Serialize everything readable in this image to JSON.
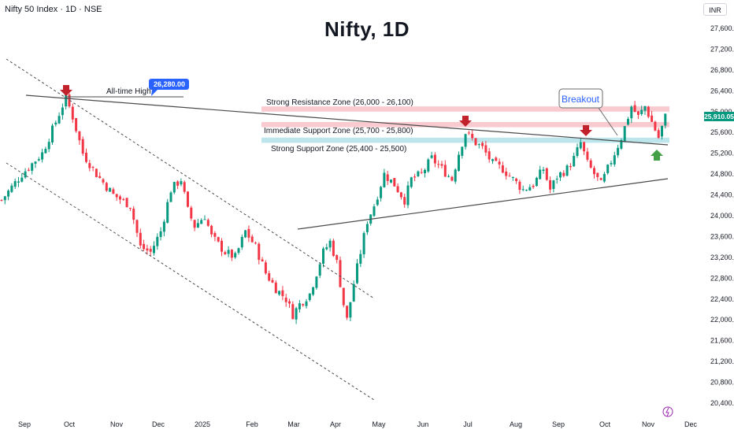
{
  "header": {
    "symbol_line": "Nifty 50 Index · 1D · NSE",
    "currency": "INR",
    "title": "Nifty, 1D"
  },
  "colors": {
    "up": "#089981",
    "down": "#f23645",
    "resistance_zone": "#f7b9c0",
    "support_zone": "#a7dde6",
    "trendline": "#4a4a4a",
    "callout_blue": "#2962ff",
    "arrow_red": "#c2222b",
    "arrow_green": "#43a047",
    "price_label": "#089981"
  },
  "chart_data": {
    "type": "candlestick",
    "title": "Nifty, 1D",
    "ylim": [
      20400,
      27800
    ],
    "yticks": [
      "27,600.00",
      "27,200.00",
      "26,800.00",
      "26,400.00",
      "26,000.00",
      "25,600.00",
      "25,200.00",
      "24,800.00",
      "24,400.00",
      "24,000.00",
      "23,600.00",
      "23,200.00",
      "22,800.00",
      "22,400.00",
      "22,000.00",
      "21,600.00",
      "21,200.00",
      "20,800.00",
      "20,400.00"
    ],
    "xticks": [
      "Sep",
      "Oct",
      "Nov",
      "Dec",
      "2025",
      "Feb",
      "Mar",
      "Apr",
      "May",
      "Jun",
      "Jul",
      "Aug",
      "Sep",
      "Oct",
      "Nov",
      "Dec"
    ],
    "last_price": "25,910.05",
    "close_path": [
      [
        0,
        24300
      ],
      [
        6,
        24800
      ],
      [
        12,
        25200
      ],
      [
        16,
        25800
      ],
      [
        19,
        26280
      ],
      [
        21,
        25900
      ],
      [
        24,
        25200
      ],
      [
        28,
        24800
      ],
      [
        33,
        24400
      ],
      [
        38,
        24200
      ],
      [
        41,
        23400
      ],
      [
        44,
        23300
      ],
      [
        47,
        23700
      ],
      [
        50,
        24500
      ],
      [
        53,
        24700
      ],
      [
        55,
        24100
      ],
      [
        57,
        23800
      ],
      [
        60,
        24000
      ],
      [
        62,
        23600
      ],
      [
        66,
        23300
      ],
      [
        69,
        23200
      ],
      [
        72,
        23700
      ],
      [
        75,
        23400
      ],
      [
        78,
        22900
      ],
      [
        81,
        22600
      ],
      [
        84,
        22400
      ],
      [
        86,
        22100
      ],
      [
        88,
        22300
      ],
      [
        91,
        22500
      ],
      [
        93,
        22900
      ],
      [
        95,
        23300
      ],
      [
        97,
        23500
      ],
      [
        99,
        23100
      ],
      [
        101,
        22300
      ],
      [
        102,
        22000
      ],
      [
        104,
        22700
      ],
      [
        106,
        23300
      ],
      [
        108,
        23900
      ],
      [
        110,
        24200
      ],
      [
        113,
        24800
      ],
      [
        116,
        24600
      ],
      [
        119,
        24300
      ],
      [
        121,
        24700
      ],
      [
        124,
        24800
      ],
      [
        127,
        25100
      ],
      [
        130,
        24900
      ],
      [
        133,
        24700
      ],
      [
        135,
        25200
      ],
      [
        137,
        25600
      ],
      [
        140,
        25400
      ],
      [
        142,
        25300
      ],
      [
        145,
        25000
      ],
      [
        148,
        24900
      ],
      [
        151,
        24700
      ],
      [
        154,
        24500
      ],
      [
        157,
        24600
      ],
      [
        160,
        24900
      ],
      [
        162,
        24500
      ],
      [
        164,
        24750
      ],
      [
        167,
        24900
      ],
      [
        169,
        25100
      ],
      [
        171,
        25400
      ],
      [
        173,
        25000
      ],
      [
        175,
        24800
      ],
      [
        177,
        24600
      ],
      [
        179,
        24900
      ],
      [
        181,
        25200
      ],
      [
        183,
        25500
      ],
      [
        186,
        26100
      ],
      [
        188,
        25900
      ],
      [
        190,
        26100
      ],
      [
        192,
        25800
      ],
      [
        194,
        25500
      ],
      [
        196,
        25900
      ]
    ],
    "annotations": {
      "ath_label": "All-time High",
      "ath_value": "26,280.00",
      "resistance_label": "Strong Resistance Zone (26,000 - 26,100)",
      "immediate_support_label": "Immediate Support Zone (25,700 - 25,800)",
      "strong_support_label": "Strong Support Zone (25,400 - 25,500)",
      "breakout_label": "Breakout"
    },
    "zones": [
      {
        "name": "resistance",
        "low": 26000,
        "high": 26100
      },
      {
        "name": "immediate-support",
        "low": 25700,
        "high": 25800
      },
      {
        "name": "strong-support",
        "low": 25400,
        "high": 25500
      }
    ]
  }
}
